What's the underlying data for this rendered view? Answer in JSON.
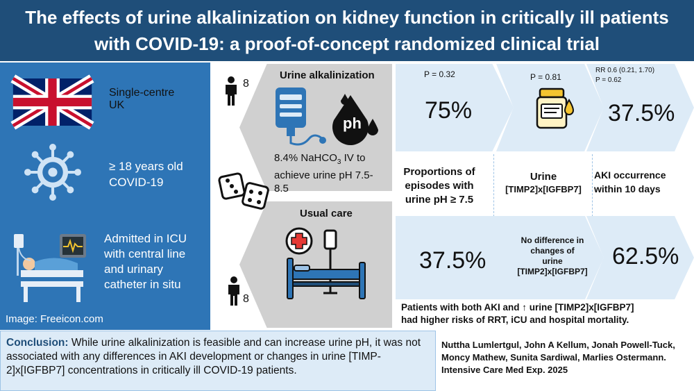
{
  "header": {
    "title_line1": "The effects of urine alkalinization on kidney function in critically ill patients",
    "title_line2": "with COVID-19: a proof-of-concept randomized clinical trial"
  },
  "setting": {
    "site_line1": "Single-centre",
    "site_line2": "UK",
    "age_line1": "≥ 18 years old",
    "age_line2": "COVID-19",
    "icu_line1": "Admitted in ICU",
    "icu_line2": "with central line",
    "icu_line3": "and urinary",
    "icu_line4": "catheter in situ",
    "image_credit": "Image: Freeicon.com"
  },
  "arms": {
    "intervention": {
      "title": "Urine alkalinization",
      "n": "8",
      "ph_text": "ph",
      "desc_line1_pre": "8.4% NaHCO",
      "desc_line1_sub": "3",
      "desc_line1_post": " IV to",
      "desc_line2": "achieve urine pH 7.5-",
      "desc_line3": "8.5"
    },
    "control": {
      "title": "Usual care",
      "n": "8"
    }
  },
  "results": {
    "top": {
      "ph_p": "P = 0.32",
      "ph_value": "75%",
      "timp_p": "P = 0.81",
      "aki_rr": "RR 0.6 (0.21, 1.70)",
      "aki_p": "P = 0.62",
      "aki_value": "37.5%"
    },
    "outcomes": {
      "ph_line1": "Proportions of",
      "ph_line2": "episodes with",
      "ph_line3": "urine pH ≥ 7.5",
      "timp_line1": "Urine",
      "timp_line2": "[TIMP2]x[IGFBP7]",
      "aki_line1": "AKI occurrence",
      "aki_line2": "within 10 days"
    },
    "bottom": {
      "ph_value": "37.5%",
      "timp_line1": "No difference in",
      "timp_line2": "changes of",
      "timp_line3": "urine",
      "timp_line4": "[TIMP2]x[IGFBP7]",
      "aki_value": "62.5%"
    },
    "note_line1": "Patients with both AKI and ↑ urine [TIMP2]x[IGFBP7]",
    "note_line2": "had higher risks of RRT, iCU and hospital mortality."
  },
  "conclusion": {
    "label": "Conclusion:",
    "text": " While urine alkalinization is feasible and can increase urine pH, it was not associated with any differences in AKI development or changes in urine [TIMP-2]x[IGFBP7] concentrations in critically ill COVID-19 patients."
  },
  "citation": {
    "text": "Nuttha Lumlertgul, John A Kellum, Jonah Powell-Tuck, Moncy Mathew, Sunita Sardiwal, Marlies Ostermann. Intensive Care Med Exp. 2025"
  },
  "colors": {
    "header_bg": "#1f4e79",
    "left_panel_bg": "#2e75b6",
    "chevron_fill": "#ddebf7",
    "arm_shape_fill": "#d0d0d0",
    "conclusion_bg": "#ddebf7"
  },
  "icons": [
    "uk-flag-icon",
    "virus-icon",
    "icu-patient-icon",
    "person-icon",
    "iv-bag-icon",
    "ph-drop-icon",
    "dice-icon",
    "hospital-bed-icon",
    "urine-sample-icon"
  ]
}
